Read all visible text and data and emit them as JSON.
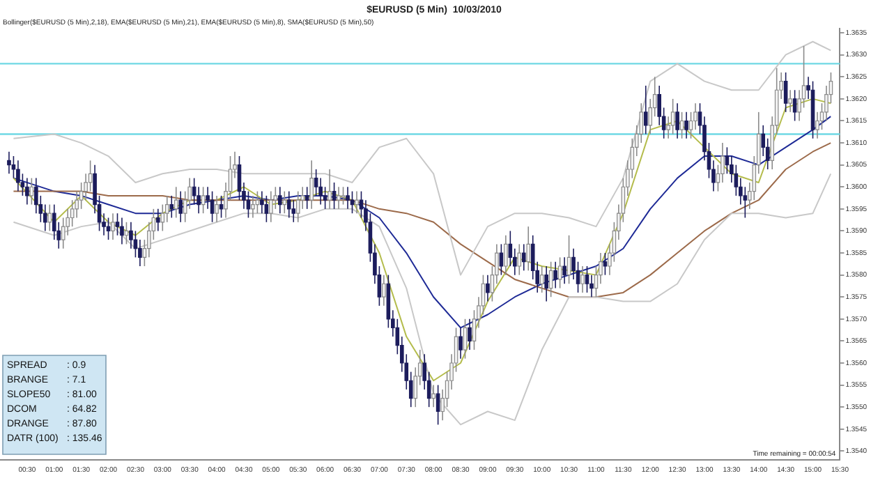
{
  "chart_data": {
    "type": "candlestick",
    "title": "$EURUSD (5 Min)  10/03/2010",
    "annotations": [
      "Bollinger($EURUSD (5 Min),2,18), EMA($EURUSD (5 Min),21), EMA($EURUSD (5 Min),8), SMA($EURUSD (5 Min),50)",
      "SPREAD : 0.9",
      "BRANGE : 7.1",
      "SLOPE50 : 81.00",
      "DCOM : 64.82",
      "DRANGE : 87.80",
      "DATR (100) : 135.46",
      "Time remaining = 00:00:54"
    ],
    "x": [
      0.1667,
      0.25,
      0.3333,
      0.4167,
      0.5,
      0.5833,
      0.6667,
      0.75,
      0.8333,
      0.9167,
      1,
      1.0833,
      1.1667,
      1.25,
      1.3333,
      1.4167,
      1.5,
      1.5833,
      1.6667,
      1.75,
      1.8333,
      1.9167,
      2,
      2.0833,
      2.1667,
      2.25,
      2.3333,
      2.4167,
      2.5,
      2.5833,
      2.6667,
      2.75,
      2.8333,
      2.9167,
      3,
      3.0833,
      3.1667,
      3.25,
      3.3333,
      3.4167,
      3.5,
      3.5833,
      3.6667,
      3.75,
      3.8333,
      3.9167,
      4,
      4.0833,
      4.1667,
      4.25,
      4.3333,
      4.4167,
      4.5,
      4.5833,
      4.6667,
      4.75,
      4.8333,
      4.9167,
      5,
      5.0833,
      5.1667,
      5.25,
      5.3333,
      5.4167,
      5.5,
      5.5833,
      5.6667,
      5.75,
      5.8333,
      5.9167,
      6,
      6.0833,
      6.1667,
      6.25,
      6.3333,
      6.4167,
      6.5,
      6.5833,
      6.6667,
      6.75,
      6.8333,
      6.9167,
      7,
      7.0833,
      7.1667,
      7.25,
      7.3333,
      7.4167,
      7.5,
      7.5833,
      7.6667,
      7.75,
      7.8333,
      7.9167,
      8,
      8.0833,
      8.1667,
      8.25,
      8.3333,
      8.4167,
      8.5,
      8.5833,
      8.6667,
      8.75,
      8.8333,
      8.9167,
      9,
      9.0833,
      9.1667,
      9.25,
      9.3333,
      9.4167,
      9.5,
      9.5833,
      9.6667,
      9.75,
      9.8333,
      9.9167,
      10,
      10.0833,
      10.1667,
      10.25,
      10.3333,
      10.4167,
      10.5,
      10.5833,
      10.6667,
      10.75,
      10.8333,
      10.9167,
      11,
      11.0833,
      11.1667,
      11.25,
      11.3333,
      11.4167,
      11.5,
      11.5833,
      11.6667,
      11.75,
      11.8333,
      11.9167,
      12,
      12.0833,
      12.1667,
      12.25,
      12.3333,
      12.4167,
      12.5,
      12.5833,
      12.6667,
      12.75,
      12.8333,
      12.9167,
      13,
      13.0833,
      13.1667,
      13.25,
      13.3333,
      13.4167,
      13.5,
      13.5833,
      13.6667,
      13.75,
      13.8333,
      13.9167,
      14,
      14.0833,
      14.1667,
      14.25,
      14.3333,
      14.4167,
      14.5,
      14.5833,
      14.6667,
      14.75,
      14.8333,
      14.9167,
      15,
      15.0833,
      15.1667,
      15.25,
      15.3333
    ],
    "ohlc": [
      [
        1.3606,
        1.3608,
        1.3603,
        1.3605
      ],
      [
        1.3605,
        1.3607,
        1.3602,
        1.3604
      ],
      [
        1.3604,
        1.3606,
        1.3599,
        1.3601
      ],
      [
        1.3601,
        1.3603,
        1.3598,
        1.36
      ],
      [
        1.36,
        1.3602,
        1.3596,
        1.3598
      ],
      [
        1.3598,
        1.3602,
        1.3596,
        1.36
      ],
      [
        1.36,
        1.3602,
        1.3594,
        1.3596
      ],
      [
        1.3596,
        1.3598,
        1.3592,
        1.3594
      ],
      [
        1.3594,
        1.3596,
        1.359,
        1.3592
      ],
      [
        1.3592,
        1.3596,
        1.359,
        1.3594
      ],
      [
        1.3594,
        1.3596,
        1.3588,
        1.359
      ],
      [
        1.359,
        1.3592,
        1.3586,
        1.3588
      ],
      [
        1.3588,
        1.3593,
        1.3586,
        1.3591
      ],
      [
        1.3591,
        1.3595,
        1.3589,
        1.3593
      ],
      [
        1.3593,
        1.3597,
        1.3591,
        1.3595
      ],
      [
        1.3595,
        1.3599,
        1.3593,
        1.3597
      ],
      [
        1.3597,
        1.3601,
        1.3595,
        1.3599
      ],
      [
        1.3599,
        1.3603,
        1.3597,
        1.3601
      ],
      [
        1.3601,
        1.3606,
        1.3599,
        1.3603
      ],
      [
        1.3603,
        1.3605,
        1.3594,
        1.3596
      ],
      [
        1.3596,
        1.3598,
        1.359,
        1.3592
      ],
      [
        1.3592,
        1.3594,
        1.3589,
        1.3591
      ],
      [
        1.3591,
        1.3593,
        1.3588,
        1.359
      ],
      [
        1.359,
        1.3594,
        1.3588,
        1.3592
      ],
      [
        1.3592,
        1.3594,
        1.3589,
        1.3591
      ],
      [
        1.3591,
        1.3593,
        1.3587,
        1.3589
      ],
      [
        1.3589,
        1.3592,
        1.3587,
        1.359
      ],
      [
        1.359,
        1.3592,
        1.3586,
        1.3588
      ],
      [
        1.3588,
        1.359,
        1.3584,
        1.3586
      ],
      [
        1.3586,
        1.3588,
        1.3582,
        1.3584
      ],
      [
        1.3584,
        1.3588,
        1.3582,
        1.3586
      ],
      [
        1.3586,
        1.3592,
        1.3584,
        1.359
      ],
      [
        1.359,
        1.3595,
        1.3588,
        1.3593
      ],
      [
        1.3593,
        1.3595,
        1.359,
        1.3592
      ],
      [
        1.3592,
        1.3596,
        1.359,
        1.3594
      ],
      [
        1.3594,
        1.3598,
        1.3592,
        1.3596
      ],
      [
        1.3596,
        1.3598,
        1.3593,
        1.3595
      ],
      [
        1.3595,
        1.36,
        1.3593,
        1.3597
      ],
      [
        1.3597,
        1.3599,
        1.3592,
        1.3594
      ],
      [
        1.3594,
        1.3599,
        1.3592,
        1.3597
      ],
      [
        1.3597,
        1.3602,
        1.3595,
        1.36
      ],
      [
        1.36,
        1.3602,
        1.3596,
        1.3598
      ],
      [
        1.3598,
        1.36,
        1.3594,
        1.3596
      ],
      [
        1.3596,
        1.36,
        1.3594,
        1.3598
      ],
      [
        1.3598,
        1.36,
        1.3595,
        1.3597
      ],
      [
        1.3597,
        1.3599,
        1.3592,
        1.3594
      ],
      [
        1.3594,
        1.3598,
        1.3592,
        1.3596
      ],
      [
        1.3596,
        1.3598,
        1.3593,
        1.3595
      ],
      [
        1.3595,
        1.3601,
        1.3593,
        1.3599
      ],
      [
        1.3599,
        1.3607,
        1.3597,
        1.3604
      ],
      [
        1.3604,
        1.3608,
        1.3602,
        1.3605
      ],
      [
        1.3605,
        1.3607,
        1.3597,
        1.3599
      ],
      [
        1.3599,
        1.3601,
        1.3595,
        1.3597
      ],
      [
        1.3597,
        1.3599,
        1.3593,
        1.3595
      ],
      [
        1.3595,
        1.3598,
        1.3593,
        1.3596
      ],
      [
        1.3596,
        1.3599,
        1.3594,
        1.3597
      ],
      [
        1.3597,
        1.3599,
        1.3594,
        1.3596
      ],
      [
        1.3596,
        1.3598,
        1.3592,
        1.3594
      ],
      [
        1.3594,
        1.3599,
        1.3592,
        1.3597
      ],
      [
        1.3597,
        1.36,
        1.3595,
        1.3598
      ],
      [
        1.3598,
        1.36,
        1.3594,
        1.3596
      ],
      [
        1.3596,
        1.3599,
        1.3594,
        1.3597
      ],
      [
        1.3597,
        1.3599,
        1.3593,
        1.3595
      ],
      [
        1.3595,
        1.3597,
        1.3592,
        1.3594
      ],
      [
        1.3594,
        1.3599,
        1.3592,
        1.3597
      ],
      [
        1.3597,
        1.36,
        1.3595,
        1.3598
      ],
      [
        1.3598,
        1.36,
        1.3595,
        1.3597
      ],
      [
        1.3597,
        1.3606,
        1.3595,
        1.3602
      ],
      [
        1.3602,
        1.3604,
        1.3598,
        1.36
      ],
      [
        1.36,
        1.3602,
        1.3596,
        1.3598
      ],
      [
        1.3598,
        1.36,
        1.3595,
        1.3597
      ],
      [
        1.3597,
        1.3604,
        1.3595,
        1.3599
      ],
      [
        1.3599,
        1.3601,
        1.3595,
        1.3597
      ],
      [
        1.3597,
        1.36,
        1.3595,
        1.3598
      ],
      [
        1.3598,
        1.36,
        1.3596,
        1.3598
      ],
      [
        1.3598,
        1.36,
        1.3595,
        1.3597
      ],
      [
        1.3597,
        1.3599,
        1.3594,
        1.3596
      ],
      [
        1.3596,
        1.3599,
        1.3594,
        1.3597
      ],
      [
        1.3597,
        1.3599,
        1.3593,
        1.3595
      ],
      [
        1.3595,
        1.3597,
        1.359,
        1.3592
      ],
      [
        1.3592,
        1.3594,
        1.3583,
        1.3585
      ],
      [
        1.3585,
        1.3587,
        1.3578,
        1.358
      ],
      [
        1.358,
        1.3582,
        1.3573,
        1.3575
      ],
      [
        1.3575,
        1.358,
        1.3573,
        1.3578
      ],
      [
        1.3578,
        1.358,
        1.3568,
        1.357
      ],
      [
        1.357,
        1.3572,
        1.3566,
        1.3568
      ],
      [
        1.3568,
        1.357,
        1.3562,
        1.3564
      ],
      [
        1.3564,
        1.3566,
        1.3558,
        1.356
      ],
      [
        1.356,
        1.3562,
        1.3554,
        1.3556
      ],
      [
        1.3556,
        1.3558,
        1.355,
        1.3552
      ],
      [
        1.3552,
        1.3559,
        1.355,
        1.3557
      ],
      [
        1.3557,
        1.3563,
        1.3555,
        1.356
      ],
      [
        1.356,
        1.3562,
        1.3554,
        1.3556
      ],
      [
        1.3556,
        1.3558,
        1.355,
        1.3552
      ],
      [
        1.3552,
        1.3555,
        1.355,
        1.3553
      ],
      [
        1.3553,
        1.3555,
        1.3546,
        1.3549
      ],
      [
        1.3549,
        1.3554,
        1.3547,
        1.3552
      ],
      [
        1.3552,
        1.3558,
        1.355,
        1.3556
      ],
      [
        1.3556,
        1.3562,
        1.3554,
        1.356
      ],
      [
        1.356,
        1.3568,
        1.3558,
        1.3566
      ],
      [
        1.3566,
        1.3568,
        1.3561,
        1.3563
      ],
      [
        1.3563,
        1.357,
        1.3561,
        1.3568
      ],
      [
        1.3568,
        1.357,
        1.3563,
        1.3565
      ],
      [
        1.3565,
        1.3572,
        1.3563,
        1.357
      ],
      [
        1.357,
        1.3575,
        1.3568,
        1.3573
      ],
      [
        1.3573,
        1.358,
        1.3571,
        1.3578
      ],
      [
        1.3578,
        1.358,
        1.3574,
        1.3576
      ],
      [
        1.3576,
        1.3582,
        1.3574,
        1.358
      ],
      [
        1.358,
        1.3587,
        1.3578,
        1.3585
      ],
      [
        1.3585,
        1.3587,
        1.358,
        1.3582
      ],
      [
        1.3582,
        1.3589,
        1.358,
        1.3587
      ],
      [
        1.3587,
        1.359,
        1.3582,
        1.3584
      ],
      [
        1.3584,
        1.3586,
        1.358,
        1.3582
      ],
      [
        1.3582,
        1.3587,
        1.358,
        1.3585
      ],
      [
        1.3585,
        1.3587,
        1.3581,
        1.3583
      ],
      [
        1.3583,
        1.3591,
        1.3581,
        1.3587
      ],
      [
        1.3587,
        1.3589,
        1.3579,
        1.3581
      ],
      [
        1.3581,
        1.3583,
        1.3576,
        1.3578
      ],
      [
        1.3578,
        1.3582,
        1.3576,
        1.358
      ],
      [
        1.358,
        1.3582,
        1.3574,
        1.3577
      ],
      [
        1.3577,
        1.3583,
        1.3575,
        1.3581
      ],
      [
        1.3581,
        1.3583,
        1.3577,
        1.3579
      ],
      [
        1.3579,
        1.3584,
        1.3577,
        1.3582
      ],
      [
        1.3582,
        1.3584,
        1.3578,
        1.358
      ],
      [
        1.358,
        1.3589,
        1.3578,
        1.3584
      ],
      [
        1.3584,
        1.3586,
        1.3579,
        1.3581
      ],
      [
        1.3581,
        1.3583,
        1.3576,
        1.3578
      ],
      [
        1.3578,
        1.3582,
        1.3576,
        1.358
      ],
      [
        1.358,
        1.3582,
        1.3576,
        1.3578
      ],
      [
        1.3578,
        1.358,
        1.3575,
        1.3577
      ],
      [
        1.3577,
        1.3582,
        1.3575,
        1.358
      ],
      [
        1.358,
        1.3585,
        1.3578,
        1.3583
      ],
      [
        1.3583,
        1.3585,
        1.358,
        1.3582
      ],
      [
        1.3582,
        1.3587,
        1.358,
        1.3585
      ],
      [
        1.3585,
        1.3592,
        1.3583,
        1.359
      ],
      [
        1.359,
        1.3596,
        1.3588,
        1.3594
      ],
      [
        1.3594,
        1.3602,
        1.3592,
        1.36
      ],
      [
        1.36,
        1.3606,
        1.3598,
        1.3604
      ],
      [
        1.3604,
        1.3611,
        1.3602,
        1.3609
      ],
      [
        1.3609,
        1.3614,
        1.3607,
        1.3612
      ],
      [
        1.3612,
        1.3619,
        1.361,
        1.3617
      ],
      [
        1.3617,
        1.3623,
        1.3612,
        1.3614
      ],
      [
        1.3614,
        1.362,
        1.3612,
        1.3618
      ],
      [
        1.3618,
        1.3625,
        1.3616,
        1.3621
      ],
      [
        1.3621,
        1.3623,
        1.3614,
        1.3616
      ],
      [
        1.3616,
        1.3618,
        1.3611,
        1.3613
      ],
      [
        1.3613,
        1.3616,
        1.3611,
        1.3614
      ],
      [
        1.3614,
        1.362,
        1.3612,
        1.3617
      ],
      [
        1.3617,
        1.3619,
        1.3611,
        1.3613
      ],
      [
        1.3613,
        1.3617,
        1.3611,
        1.3615
      ],
      [
        1.3615,
        1.3617,
        1.3611,
        1.3613
      ],
      [
        1.3613,
        1.3617,
        1.3611,
        1.3615
      ],
      [
        1.3615,
        1.3619,
        1.3613,
        1.3617
      ],
      [
        1.3617,
        1.3619,
        1.3612,
        1.3614
      ],
      [
        1.3614,
        1.3616,
        1.3606,
        1.3608
      ],
      [
        1.3608,
        1.361,
        1.3602,
        1.3604
      ],
      [
        1.3604,
        1.3606,
        1.3599,
        1.3601
      ],
      [
        1.3601,
        1.3605,
        1.3599,
        1.3603
      ],
      [
        1.3603,
        1.361,
        1.3601,
        1.3607
      ],
      [
        1.3607,
        1.3609,
        1.3603,
        1.3605
      ],
      [
        1.3605,
        1.3607,
        1.3601,
        1.3603
      ],
      [
        1.3603,
        1.3605,
        1.3598,
        1.36
      ],
      [
        1.36,
        1.3602,
        1.3596,
        1.3598
      ],
      [
        1.3598,
        1.36,
        1.3593,
        1.3597
      ],
      [
        1.3597,
        1.3601,
        1.3595,
        1.3599
      ],
      [
        1.3599,
        1.3607,
        1.3597,
        1.3605
      ],
      [
        1.3605,
        1.3617,
        1.3603,
        1.3612
      ],
      [
        1.3612,
        1.3614,
        1.3607,
        1.3609
      ],
      [
        1.3609,
        1.3611,
        1.3604,
        1.3606
      ],
      [
        1.3606,
        1.3616,
        1.3604,
        1.3614
      ],
      [
        1.3614,
        1.3627,
        1.3612,
        1.3622
      ],
      [
        1.3622,
        1.3626,
        1.362,
        1.3624
      ],
      [
        1.3624,
        1.3626,
        1.3617,
        1.3619
      ],
      [
        1.3619,
        1.3622,
        1.3617,
        1.362
      ],
      [
        1.362,
        1.3622,
        1.3615,
        1.3617
      ],
      [
        1.3617,
        1.3622,
        1.3615,
        1.362
      ],
      [
        1.362,
        1.3632,
        1.3618,
        1.3623
      ],
      [
        1.3623,
        1.3625,
        1.362,
        1.3622
      ],
      [
        1.3622,
        1.3624,
        1.3611,
        1.3613
      ],
      [
        1.3613,
        1.3617,
        1.3611,
        1.3615
      ],
      [
        1.3615,
        1.3619,
        1.3613,
        1.3617
      ],
      [
        1.3617,
        1.3623,
        1.3615,
        1.3621
      ],
      [
        1.3621,
        1.3626,
        1.3619,
        1.3624
      ]
    ],
    "series": [
      {
        "type": "line",
        "color": "#c8c8c8",
        "x": [
          0.25,
          1,
          1.5,
          2,
          2.5,
          3,
          3.5,
          4,
          4.5,
          5,
          5.5,
          6,
          6.5,
          7,
          7.5,
          8,
          8.5,
          9,
          9.5,
          10,
          10.5,
          11,
          11.5,
          12,
          12.5,
          13,
          13.5,
          14,
          14.5,
          15,
          15.33
        ],
        "values": [
          1.3611,
          1.3612,
          1.361,
          1.3607,
          1.3601,
          1.3603,
          1.3604,
          1.3604,
          1.3603,
          1.3603,
          1.3603,
          1.3603,
          1.3601,
          1.3609,
          1.3611,
          1.3603,
          1.358,
          1.3591,
          1.3594,
          1.3594,
          1.3593,
          1.3591,
          1.3602,
          1.3624,
          1.3628,
          1.3624,
          1.3622,
          1.3622,
          1.363,
          1.3633,
          1.3631
        ]
      },
      {
        "type": "line",
        "color": "#c8c8c8",
        "x": [
          0.25,
          1,
          1.5,
          2,
          2.5,
          3,
          3.5,
          4,
          4.5,
          5,
          5.5,
          6,
          6.5,
          7,
          7.5,
          8,
          8.5,
          9,
          9.5,
          10,
          10.5,
          11,
          11.5,
          12,
          12.5,
          13,
          13.5,
          14,
          14.5,
          15,
          15.33
        ],
        "values": [
          1.3592,
          1.3589,
          1.3591,
          1.3592,
          1.3586,
          1.3588,
          1.359,
          1.3592,
          1.3594,
          1.3594,
          1.3593,
          1.3595,
          1.3595,
          1.3591,
          1.3577,
          1.3553,
          1.3546,
          1.3549,
          1.3547,
          1.3563,
          1.3575,
          1.3575,
          1.3574,
          1.3574,
          1.3578,
          1.3588,
          1.3594,
          1.3594,
          1.3593,
          1.3594,
          1.3603
        ]
      },
      {
        "type": "line",
        "color": "#9c6a4a",
        "x": [
          0.25,
          1,
          1.5,
          2,
          2.5,
          3,
          3.5,
          4,
          4.5,
          5,
          5.5,
          6,
          6.5,
          7,
          7.5,
          8,
          8.5,
          9,
          9.5,
          10,
          10.5,
          11,
          11.5,
          12,
          12.5,
          13,
          13.5,
          14,
          14.5,
          15,
          15.33
        ],
        "values": [
          1.3599,
          1.3599,
          1.3599,
          1.3598,
          1.3598,
          1.3598,
          1.3597,
          1.3597,
          1.3597,
          1.3597,
          1.3597,
          1.3597,
          1.3597,
          1.3595,
          1.3594,
          1.3592,
          1.3587,
          1.3583,
          1.3579,
          1.3577,
          1.3575,
          1.3575,
          1.3576,
          1.358,
          1.3585,
          1.359,
          1.3594,
          1.3597,
          1.3604,
          1.3608,
          1.361
        ]
      },
      {
        "type": "line",
        "color": "#b4bc4c",
        "x": [
          0.25,
          1,
          1.5,
          2,
          2.5,
          3,
          3.5,
          4,
          4.5,
          5,
          5.5,
          6,
          6.5,
          7,
          7.5,
          8,
          8.5,
          9,
          9.5,
          10,
          10.5,
          11,
          11.5,
          12,
          12.5,
          13,
          13.5,
          14,
          14.5,
          15,
          15.33
        ],
        "values": [
          1.3602,
          1.3592,
          1.3598,
          1.3592,
          1.3589,
          1.3594,
          1.3597,
          1.3597,
          1.36,
          1.3596,
          1.3597,
          1.3599,
          1.3597,
          1.3585,
          1.3566,
          1.3556,
          1.356,
          1.3574,
          1.3584,
          1.3582,
          1.3581,
          1.358,
          1.3594,
          1.3613,
          1.3615,
          1.3609,
          1.3603,
          1.3601,
          1.3618,
          1.362,
          1.3619
        ]
      },
      {
        "type": "line",
        "color": "#1e2a96",
        "x": [
          0.25,
          1,
          1.5,
          2,
          2.5,
          3,
          3.5,
          4,
          4.5,
          5,
          5.5,
          6,
          6.5,
          7,
          7.5,
          8,
          8.5,
          9,
          9.5,
          10,
          10.5,
          11,
          11.5,
          12,
          12.5,
          13,
          13.5,
          14,
          14.5,
          15,
          15.33
        ],
        "values": [
          1.3602,
          1.3599,
          1.3598,
          1.3596,
          1.3594,
          1.3594,
          1.3596,
          1.3597,
          1.3598,
          1.3597,
          1.3598,
          1.3598,
          1.3597,
          1.3593,
          1.3585,
          1.3575,
          1.3568,
          1.3571,
          1.3575,
          1.3578,
          1.358,
          1.3582,
          1.3586,
          1.3595,
          1.3602,
          1.3607,
          1.3607,
          1.3605,
          1.3609,
          1.3613,
          1.3616
        ]
      }
    ],
    "xlim": [
      0,
      15.5
    ],
    "xticks": [
      {
        "value": 0.5,
        "label": "00:30"
      },
      {
        "value": 1,
        "label": "01:00"
      },
      {
        "value": 1.5,
        "label": "01:30"
      },
      {
        "value": 2,
        "label": "02:00"
      },
      {
        "value": 2.5,
        "label": "02:30"
      },
      {
        "value": 3,
        "label": "03:00"
      },
      {
        "value": 3.5,
        "label": "03:30"
      },
      {
        "value": 4,
        "label": "04:00"
      },
      {
        "value": 4.5,
        "label": "04:30"
      },
      {
        "value": 5,
        "label": "05:00"
      },
      {
        "value": 5.5,
        "label": "05:30"
      },
      {
        "value": 6,
        "label": "06:00"
      },
      {
        "value": 6.5,
        "label": "06:30"
      },
      {
        "value": 7,
        "label": "07:00"
      },
      {
        "value": 7.5,
        "label": "07:30"
      },
      {
        "value": 8,
        "label": "08:00"
      },
      {
        "value": 8.5,
        "label": "08:30"
      },
      {
        "value": 9,
        "label": "09:00"
      },
      {
        "value": 9.5,
        "label": "09:30"
      },
      {
        "value": 10,
        "label": "10:00"
      },
      {
        "value": 10.5,
        "label": "10:30"
      },
      {
        "value": 11,
        "label": "11:00"
      },
      {
        "value": 11.5,
        "label": "11:30"
      },
      {
        "value": 12,
        "label": "12:00"
      },
      {
        "value": 12.5,
        "label": "12:30"
      },
      {
        "value": 13,
        "label": "13:00"
      },
      {
        "value": 13.5,
        "label": "13:30"
      },
      {
        "value": 14,
        "label": "14:00"
      },
      {
        "value": 14.5,
        "label": "14:30"
      },
      {
        "value": 15,
        "label": "15:00"
      },
      {
        "value": 15.5,
        "label": "15:30"
      }
    ],
    "ylim": [
      1.3538,
      1.3636
    ],
    "yticks": [
      {
        "value": 1.354,
        "label": "1.3540"
      },
      1.3545,
      {
        "value": 1.355,
        "label": "1.3550"
      },
      1.3555,
      {
        "value": 1.356,
        "label": "1.3560"
      },
      1.3565,
      {
        "value": 1.357,
        "label": "1.3570"
      },
      1.3575,
      {
        "value": 1.358,
        "label": "1.3580"
      },
      1.3585,
      {
        "value": 1.359,
        "label": "1.3590"
      },
      1.3595,
      {
        "value": 1.36,
        "label": "1.3600"
      },
      1.3605,
      {
        "value": 1.361,
        "label": "1.3610"
      },
      1.3615,
      {
        "value": 1.362,
        "label": "1.3620"
      },
      1.3625,
      {
        "value": 1.363,
        "label": "1.3630"
      },
      1.3635
    ],
    "ref_lines": [
      {
        "axis": "y",
        "value": 1.3628,
        "color": "#6fd8e4"
      },
      {
        "axis": "y",
        "value": 1.3612,
        "color": "#6fd8e4"
      }
    ]
  }
}
